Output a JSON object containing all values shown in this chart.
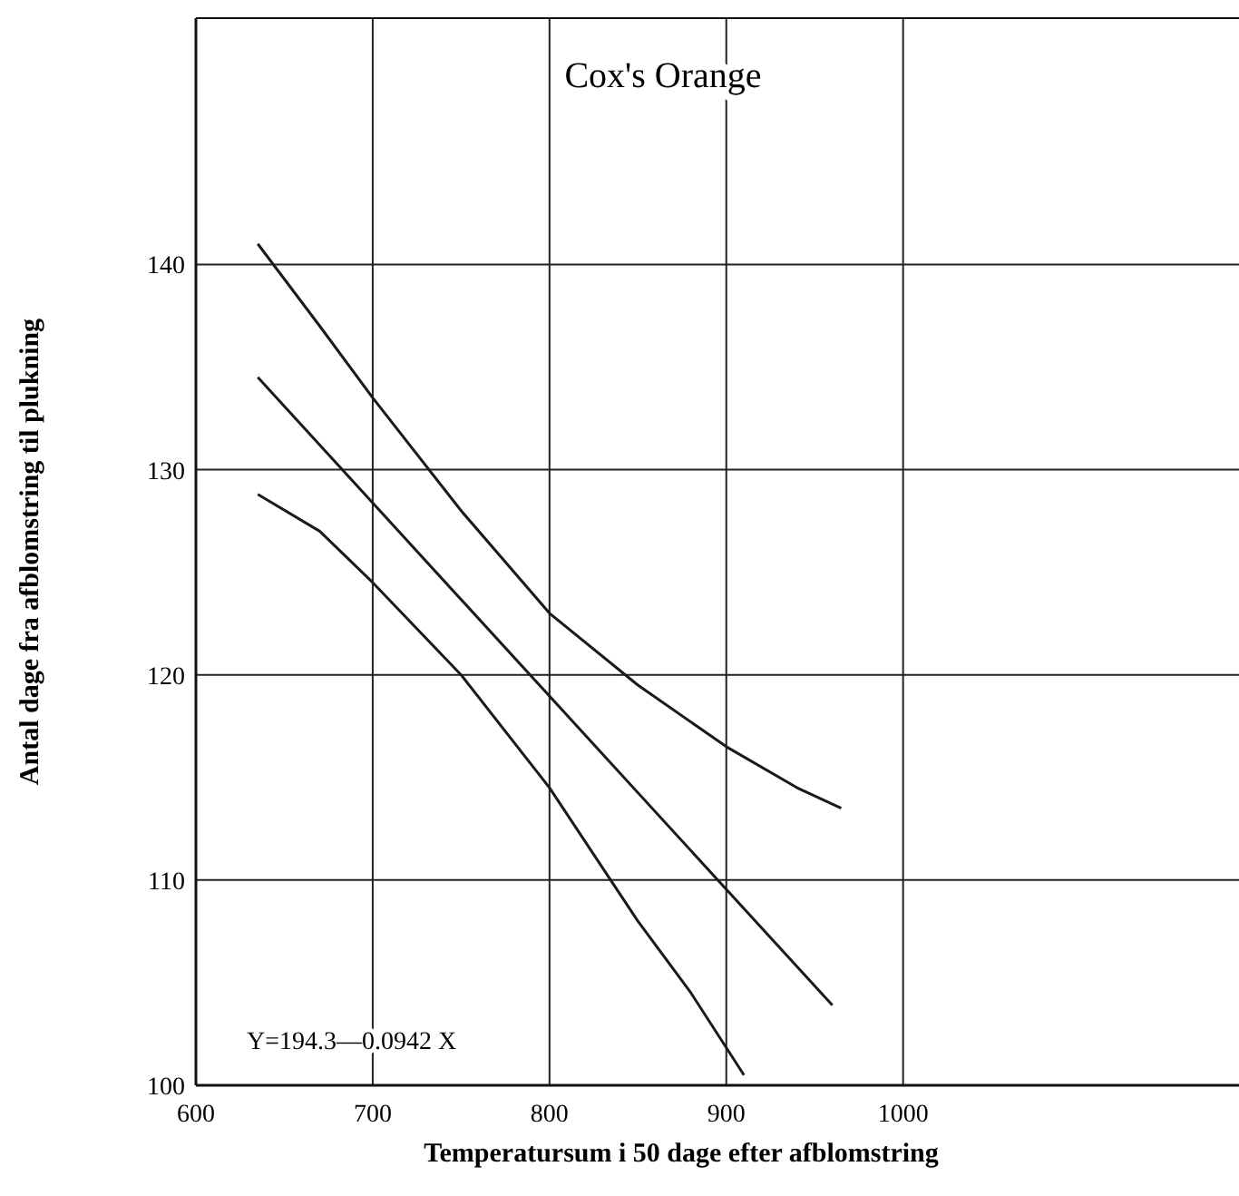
{
  "chart_data": {
    "type": "line",
    "title": "Cox's Orange",
    "xlabel": "Temperatursum i 50 dage efter afblomstring",
    "ylabel": "Antal dage fra afblomstring til plukning",
    "annotations": [
      "Y=194.3—0.0942 X"
    ],
    "series": [
      {
        "color": "#1a1a1a",
        "x": [
          635,
          670,
          700,
          750,
          800,
          850,
          900,
          940,
          965
        ],
        "values": [
          141,
          137,
          133.5,
          128,
          123,
          119.5,
          116.5,
          114.5,
          113.5
        ]
      },
      {
        "color": "#1a1a1a",
        "x": [
          635,
          960
        ],
        "values": [
          134.5,
          103.9
        ]
      },
      {
        "color": "#1a1a1a",
        "x": [
          635,
          670,
          700,
          750,
          800,
          850,
          880,
          910
        ],
        "values": [
          128.8,
          127,
          124.5,
          120,
          114.5,
          108,
          104.5,
          100.5
        ]
      }
    ],
    "xlim": [
      600,
      1190
    ],
    "ylim": [
      100,
      152
    ],
    "xticks": [
      600,
      700,
      800,
      900,
      1000
    ],
    "yticks": [
      100,
      110,
      120,
      130,
      140
    ],
    "grid": true,
    "marker": "none",
    "line_style": "solid"
  }
}
